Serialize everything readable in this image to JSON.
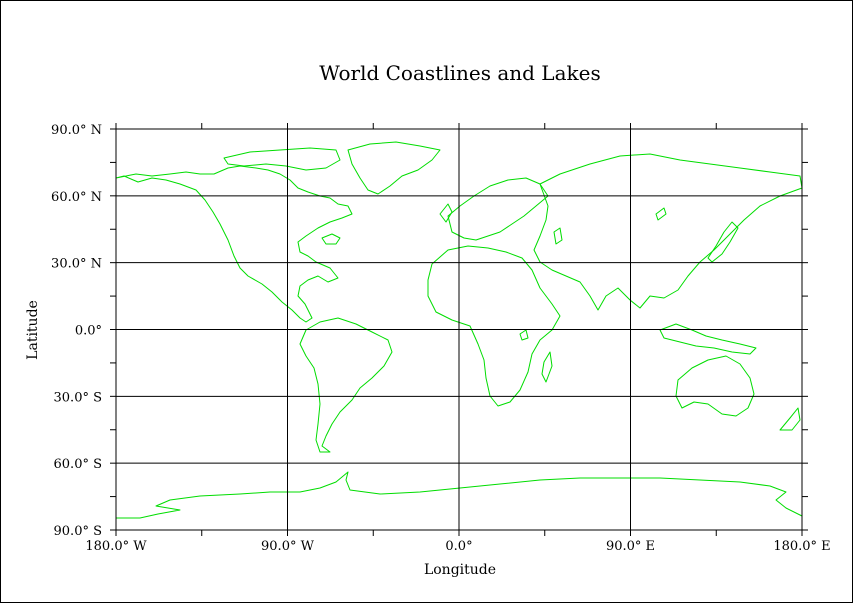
{
  "title": "World Coastlines and Lakes",
  "xaxis": {
    "label": "Longitude",
    "range": [
      -180,
      180
    ],
    "ticks": [
      {
        "value": -180,
        "label": "180.0° W"
      },
      {
        "value": -90,
        "label": "90.0° W"
      },
      {
        "value": 0,
        "label": "0.0°"
      },
      {
        "value": 90,
        "label": "90.0° E"
      },
      {
        "value": 180,
        "label": "180.0° E"
      }
    ]
  },
  "yaxis": {
    "label": "Latitude",
    "range": [
      -90,
      90
    ],
    "ticks": [
      {
        "value": 90,
        "label": "90.0° N"
      },
      {
        "value": 60,
        "label": "60.0° N"
      },
      {
        "value": 30,
        "label": "30.0° N"
      },
      {
        "value": 0,
        "label": "0.0°"
      },
      {
        "value": -30,
        "label": "30.0° S"
      },
      {
        "value": -60,
        "label": "60.0° S"
      },
      {
        "value": -90,
        "label": "90.0° S"
      }
    ]
  },
  "grid": true,
  "colors": {
    "coastline": "#00dd00",
    "grid": "#000000",
    "background": "#ffffff"
  }
}
